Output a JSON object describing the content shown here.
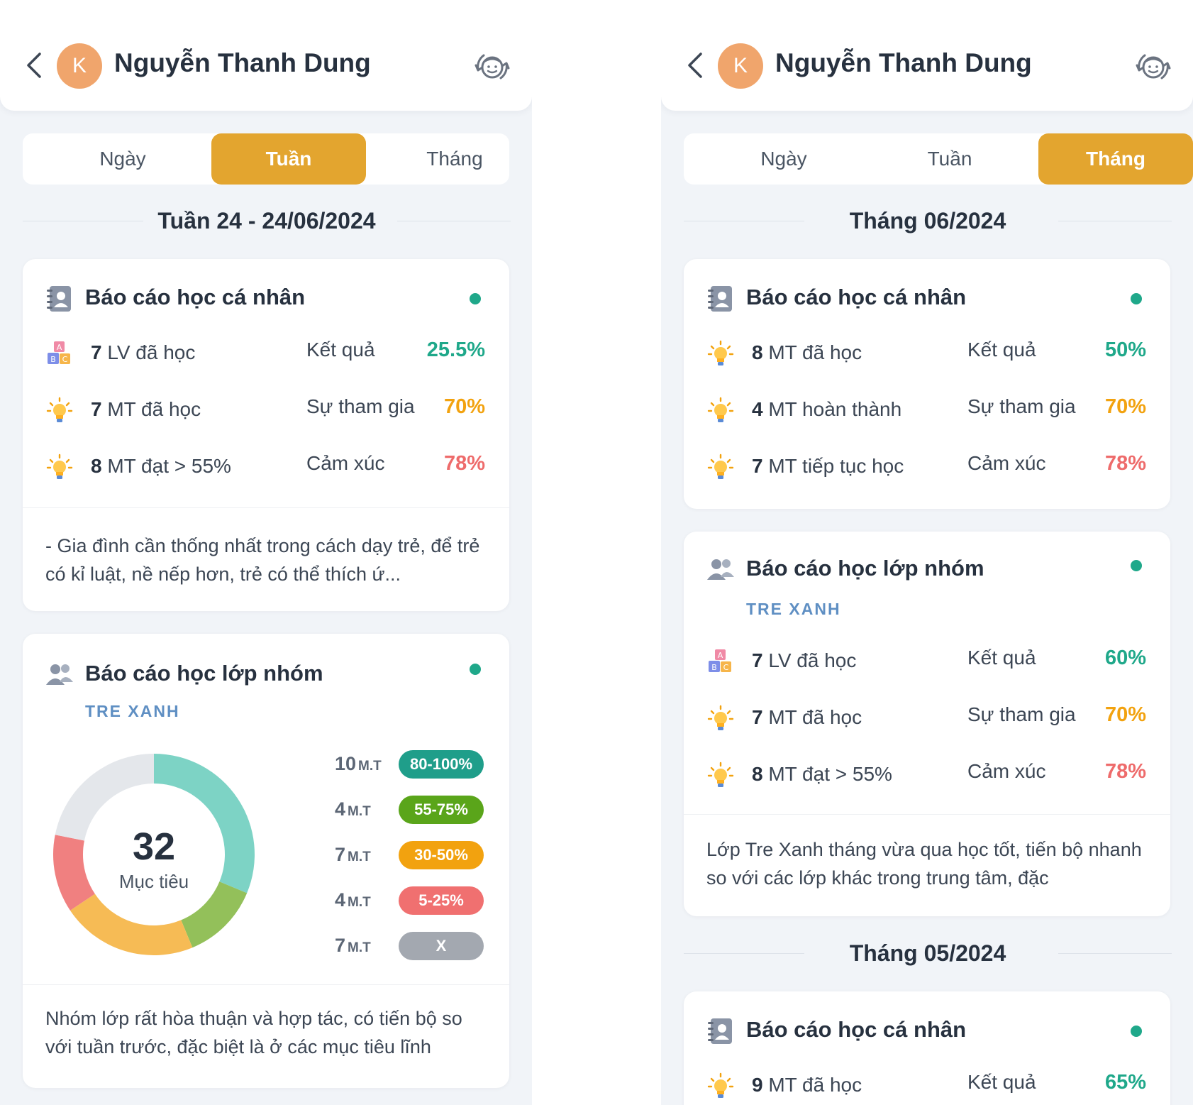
{
  "user": {
    "name": "Nguyễn Thanh Dung",
    "initial": "K"
  },
  "tabs": [
    "Ngày",
    "Tuần",
    "Tháng"
  ],
  "week_view": {
    "period": "Tuần 24 - 24/06/2024",
    "personal": {
      "title": "Báo cáo học cá nhân",
      "rows": [
        {
          "count": "7",
          "text": " LV đã học",
          "icon": "abc-blocks-icon",
          "label": "Kết quả",
          "value": "25.5%"
        },
        {
          "count": "7",
          "text": " MT đã học",
          "icon": "lightbulb-icon",
          "label": "Sự tham gia",
          "value": "70%"
        },
        {
          "count": "8",
          "text": " MT đạt > 55%",
          "icon": "lightbulb-icon",
          "label": "Cảm xúc",
          "value": "78%"
        }
      ],
      "note": "- Gia đình cần thống nhất trong cách dạy trẻ, để trẻ có kỉ luật, nề nếp hơn, trẻ có thể thích ứ..."
    },
    "group": {
      "title": "Báo cáo học lớp nhóm",
      "group_name": "TRE XANH",
      "total": "32",
      "total_label": "Mục tiêu",
      "legend": [
        {
          "count": "10",
          "unit": "M.T",
          "range": "80-100%",
          "color": "#1f9e8a"
        },
        {
          "count": "4",
          "unit": "M.T",
          "range": "55-75%",
          "color": "#5aa51a"
        },
        {
          "count": "7",
          "unit": "M.T",
          "range": "30-50%",
          "color": "#f2a20f"
        },
        {
          "count": "4",
          "unit": "M.T",
          "range": "5-25%",
          "color": "#f07070"
        },
        {
          "count": "7",
          "unit": "M.T",
          "range": "X",
          "color": "#a3a8b0"
        }
      ],
      "donut_colors": [
        "#7dd3c5",
        "#93c05a",
        "#f6bb55",
        "#f08080",
        "#e4e7eb"
      ],
      "note": "Nhóm lớp rất hòa thuận và hợp tác, có tiến bộ so với tuần trước, đặc biệt là ở các mục tiêu lĩnh"
    }
  },
  "month_view": {
    "period": "Tháng 06/2024",
    "personal": {
      "title": "Báo cáo học cá nhân",
      "rows": [
        {
          "count": "8",
          "text": " MT đã học",
          "icon": "lightbulb-icon",
          "label": "Kết quả",
          "value": "50%"
        },
        {
          "count": "4",
          "text": " MT hoàn thành",
          "icon": "lightbulb-icon",
          "label": "Sự tham gia",
          "value": "70%"
        },
        {
          "count": "7",
          "text": " MT tiếp tục học",
          "icon": "lightbulb-icon",
          "label": "Cảm xúc",
          "value": "78%"
        }
      ]
    },
    "group": {
      "title": "Báo cáo học lớp nhóm",
      "group_name": "TRE XANH",
      "rows": [
        {
          "count": "7",
          "text": " LV đã học",
          "icon": "abc-blocks-icon",
          "label": "Kết quả",
          "value": "60%"
        },
        {
          "count": "7",
          "text": " MT đã học",
          "icon": "lightbulb-icon",
          "label": "Sự tham gia",
          "value": "70%"
        },
        {
          "count": "8",
          "text": " MT đạt > 55%",
          "icon": "lightbulb-icon",
          "label": "Cảm xúc",
          "value": "78%"
        }
      ],
      "note": "Lớp Tre Xanh tháng vừa qua học tốt, tiến bộ nhanh so với các lớp khác trong trung tâm, đặc"
    },
    "prev_period": "Tháng 05/2024",
    "prev_personal": {
      "title": "Báo cáo học cá nhân",
      "rows": [
        {
          "count": "9",
          "text": " MT đã học",
          "icon": "lightbulb-icon",
          "label": "Kết quả",
          "value": "65%"
        }
      ]
    }
  },
  "colors": {
    "accent": "#e3a52f",
    "teal": "#1fa88a",
    "orange": "#f2a20f",
    "red": "#ee6b6b",
    "group_label": "#5f8fc3"
  }
}
